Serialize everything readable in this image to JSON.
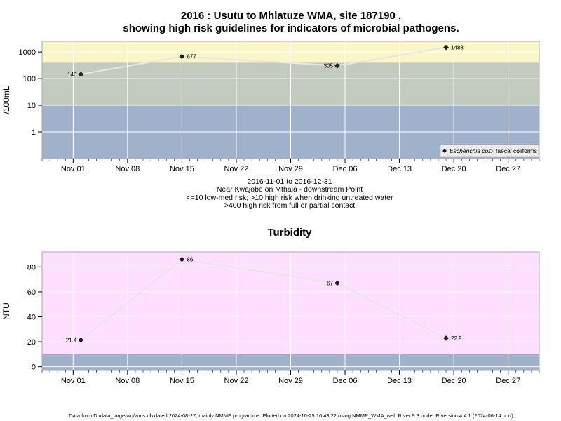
{
  "chart_data": [
    {
      "type": "line",
      "title_line1": "2016 : Usutu to Mhlatuze WMA, site 187190 ,",
      "title_line2": "showing high risk guidelines for indicators of microbial pathogens.",
      "ylabel": "/100mL",
      "y_scale": "log",
      "ylim": [
        0.1,
        2500
      ],
      "y_ticks": [
        1,
        10,
        100,
        1000
      ],
      "y_tick_labels": [
        "1",
        "10",
        "100",
        "1000"
      ],
      "xlim": [
        "2016-10-28",
        "2016-12-31"
      ],
      "x_ticks": [
        "2016-11-01",
        "2016-11-08",
        "2016-11-15",
        "2016-11-22",
        "2016-11-29",
        "2016-12-06",
        "2016-12-13",
        "2016-12-20",
        "2016-12-27"
      ],
      "x_tick_labels": [
        "Nov 01",
        "Nov 08",
        "Nov 15",
        "Nov 22",
        "Nov 29",
        "Dec 06",
        "Dec 13",
        "Dec 20",
        "Dec 27"
      ],
      "grid": true,
      "bands": [
        {
          "from": 0.1,
          "to": 10,
          "color": "#a0b1cb"
        },
        {
          "from": 10,
          "to": 400,
          "color": "#c3cbbf"
        },
        {
          "from": 400,
          "to": 2500,
          "color": "#fbf6c7"
        }
      ],
      "series": [
        {
          "name": "Escherichia coli",
          "marker": "diamond-filled",
          "x": [
            "2016-11-02",
            "2016-11-15",
            "2016-12-05",
            "2016-12-19"
          ],
          "y": [
            146,
            677,
            305,
            1483
          ],
          "labels": [
            "146",
            "677",
            "305",
            "1483"
          ]
        }
      ],
      "legend": {
        "placement": "bottom-right",
        "entries": [
          {
            "name": "Escherichia coli",
            "marker": "diamond-filled"
          },
          {
            "name": "faecal coliforms",
            "marker": "diamond-open"
          }
        ]
      },
      "sub_text": [
        "2016-11-01 to 2016-12-31",
        "Near Kwajobe on Mthala - downstream Point",
        "<=10 low-med risk; >10 high risk when drinking untreated water",
        ">400 high risk from full or partial contact"
      ]
    },
    {
      "type": "line",
      "title": "Turbidity",
      "ylabel": "NTU",
      "ylim": [
        -3,
        92
      ],
      "y_ticks": [
        0,
        20,
        40,
        60,
        80
      ],
      "y_tick_labels": [
        "0",
        "20",
        "40",
        "60",
        "80"
      ],
      "xlim": [
        "2016-10-28",
        "2016-12-31"
      ],
      "x_ticks": [
        "2016-11-01",
        "2016-11-08",
        "2016-11-15",
        "2016-11-22",
        "2016-11-29",
        "2016-12-06",
        "2016-12-13",
        "2016-12-20",
        "2016-12-27"
      ],
      "x_tick_labels": [
        "Nov 01",
        "Nov 08",
        "Nov 15",
        "Nov 22",
        "Nov 29",
        "Dec 06",
        "Dec 13",
        "Dec 20",
        "Dec 27"
      ],
      "grid": true,
      "bands": [
        {
          "from": -3,
          "to": 10,
          "color": "#a0b1cb"
        },
        {
          "from": 10,
          "to": 92,
          "color": "#ffdfff"
        }
      ],
      "series": [
        {
          "marker": "diamond-filled",
          "x": [
            "2016-11-02",
            "2016-11-15",
            "2016-12-05",
            "2016-12-19"
          ],
          "y": [
            21.4,
            86,
            67,
            22.9
          ],
          "labels": [
            "21.4",
            "86",
            "67",
            "22.9"
          ]
        }
      ]
    }
  ],
  "footer": "Data from D:/data_large/wq/wms.db dated 2024-08-27, mainly NMMP programme. Plotted on 2024-10-25 16:43:22 using NMMP_WMA_web.R ver 9.3 under R version 4.4.1 (2024-06-14 ucrt)"
}
